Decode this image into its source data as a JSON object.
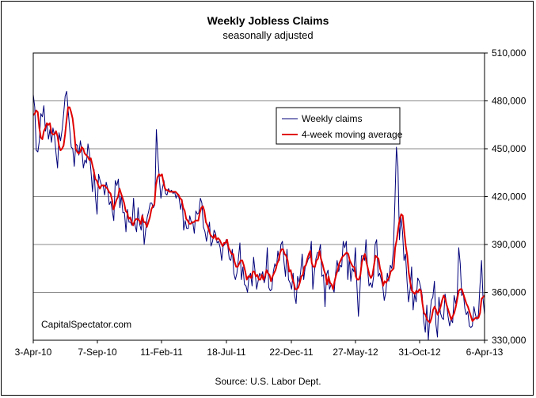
{
  "chart_data": {
    "type": "line",
    "title": "Weekly Jobless Claims",
    "subtitle": "seasonally adjusted",
    "source": "Source: U.S. Labor Dept.",
    "watermark": "CapitalSpectator.com",
    "y_axis_side": "right",
    "ylim": [
      330000,
      510000
    ],
    "y_ticks": [
      "330,000",
      "360,000",
      "390,000",
      "420,000",
      "450,000",
      "480,000",
      "510,000"
    ],
    "y_tick_values": [
      330000,
      360000,
      390000,
      420000,
      450000,
      480000,
      510000
    ],
    "x_tick_labels": [
      "3-Apr-10",
      "7-Sep-10",
      "11-Feb-11",
      "18-Jul-11",
      "22-Dec-11",
      "27-May-12",
      "31-Oct-12",
      "6-Apr-13"
    ],
    "grid": "horizontal",
    "legend_position": "top-right",
    "colors": {
      "weekly": "#00007a",
      "moving_average": "#e00000",
      "grid": "#888888"
    },
    "start_date": "2010-04-03",
    "end_date": "2013-04-06",
    "series": [
      {
        "name": "Weekly claims",
        "values": [
          484000,
          476000,
          449000,
          448000,
          455000,
          472000,
          470000,
          477000,
          461000,
          466000,
          456000,
          462000,
          454000,
          463000,
          458000,
          447000,
          438000,
          460000,
          455000,
          462000,
          472000,
          483000,
          486000,
          474000,
          462000,
          451000,
          450000,
          439000,
          453000,
          452000,
          446000,
          455000,
          449000,
          438000,
          443000,
          441000,
          453000,
          447000,
          436000,
          423000,
          437000,
          419000,
          409000,
          434000,
          430000,
          427000,
          427000,
          421000,
          429000,
          425000,
          415000,
          417000,
          411000,
          405000,
          430000,
          427000,
          431000,
          413000,
          421000,
          410000,
          410000,
          398000,
          412000,
          404000,
          404000,
          402000,
          419000,
          402000,
          398000,
          413000,
          403000,
          399000,
          409000,
          390000,
          399000,
          407000,
          411000,
          416000,
          416000,
          413000,
          415000,
          462000,
          445000,
          431000,
          419000,
          425000,
          430000,
          422000,
          421000,
          425000,
          423000,
          424000,
          422000,
          423000,
          419000,
          422000,
          419000,
          412000,
          418000,
          399000,
          405000,
          400000,
          400000,
          408000,
          404000,
          404000,
          397000,
          411000,
          409000,
          410000,
          419000,
          416000,
          401000,
          398000,
          392000,
          398000,
          404000,
          389000,
          392000,
          399000,
          397000,
          391000,
          392000,
          388000,
          380000,
          389000,
          390000,
          393000,
          389000,
          381000,
          380000,
          387000,
          372000,
          368000,
          372000,
          381000,
          391000,
          368000,
          376000,
          365000,
          364000,
          360000,
          370000,
          372000,
          364000,
          382000,
          373000,
          362000,
          367000,
          372000,
          370000,
          373000,
          366000,
          370000,
          388000,
          363000,
          361000,
          362000,
          373000,
          378000,
          375000,
          386000,
          380000,
          390000,
          392000,
          379000,
          370000,
          387000,
          368000,
          366000,
          362000,
          372000,
          358000,
          353000,
          370000,
          366000,
          373000,
          384000,
          368000,
          376000,
          378000,
          381000,
          382000,
          392000,
          362000,
          373000,
          381000,
          385000,
          385000,
          390000,
          370000,
          371000,
          351000,
          371000,
          374000,
          362000,
          365000,
          363000,
          360000,
          372000,
          380000,
          373000,
          377000,
          376000,
          392000,
          388000,
          392000,
          368000,
          382000,
          367000,
          375000,
          373000,
          388000,
          364000,
          345000,
          361000,
          383000,
          383000,
          380000,
          393000,
          375000,
          364000,
          366000,
          363000,
          370000,
          390000,
          393000,
          370000,
          372000,
          368000,
          364000,
          355000,
          360000,
          372000,
          367000,
          377000,
          375000,
          386000,
          417000,
          451000,
          439000,
          393000,
          407000,
          398000,
          380000,
          384000,
          367000,
          354000,
          362000,
          376000,
          349000,
          359000,
          354000,
          369000,
          367000,
          363000,
          358000,
          342000,
          335000,
          352000,
          330000,
          345000,
          355000,
          357000,
          367000,
          340000,
          332000,
          357000,
          347000,
          344000,
          343000,
          359000,
          353000,
          345000,
          339000,
          343000,
          341000,
          358000,
          353000,
          358000,
          388000,
          378000,
          358000,
          360000,
          350000,
          346000,
          348000,
          339000,
          338000,
          339000,
          351000,
          346000,
          343000,
          346000,
          364000,
          380000,
          356000,
          346000
        ],
        "color": "#00007a"
      },
      {
        "name": "4-week moving average",
        "values": [
          471000,
          472000,
          474000,
          473000,
          463000,
          457000,
          456000,
          461000,
          463000,
          466000,
          465000,
          466000,
          460000,
          459000,
          459000,
          461000,
          458000,
          452000,
          449000,
          450000,
          452000,
          459000,
          468000,
          476000,
          476000,
          473000,
          469000,
          461000,
          450000,
          448000,
          447000,
          448000,
          451000,
          450000,
          447000,
          446000,
          445000,
          443000,
          444000,
          440000,
          436000,
          431000,
          430000,
          427000,
          425000,
          427000,
          427000,
          427000,
          426000,
          425000,
          423000,
          422000,
          418000,
          412000,
          415000,
          418000,
          420000,
          425000,
          422000,
          419000,
          416000,
          411000,
          410000,
          406000,
          407000,
          404000,
          402000,
          405000,
          406000,
          406000,
          405000,
          403000,
          408000,
          404000,
          404000,
          401000,
          404000,
          407000,
          412000,
          414000,
          415000,
          427000,
          432000,
          434000,
          433000,
          434000,
          429000,
          425000,
          424000,
          424000,
          423000,
          423000,
          423000,
          423000,
          423000,
          422000,
          421000,
          419000,
          418000,
          413000,
          411000,
          406000,
          405000,
          403000,
          403000,
          404000,
          404000,
          405000,
          405000,
          405000,
          410000,
          413000,
          414000,
          411000,
          404000,
          402000,
          399000,
          396000,
          395000,
          394000,
          396000,
          393000,
          394000,
          393000,
          391000,
          389000,
          391000,
          391000,
          393000,
          388000,
          386000,
          384000,
          384000,
          379000,
          376000,
          376000,
          378000,
          380000,
          380000,
          377000,
          373000,
          368000,
          370000,
          370000,
          369000,
          373000,
          373000,
          370000,
          371000,
          368000,
          368000,
          371000,
          368000,
          370000,
          374000,
          372000,
          371000,
          367000,
          370000,
          372000,
          374000,
          378000,
          380000,
          385000,
          387000,
          387000,
          384000,
          383000,
          380000,
          373000,
          374000,
          369000,
          366000,
          362000,
          362000,
          363000,
          366000,
          370000,
          371000,
          376000,
          377000,
          381000,
          384000,
          386000,
          378000,
          376000,
          376000,
          380000,
          381000,
          386000,
          381000,
          378000,
          374000,
          371000,
          365000,
          370000,
          366000,
          365000,
          362000,
          367000,
          371000,
          374000,
          378000,
          380000,
          382000,
          383000,
          384000,
          385000,
          384000,
          380000,
          378000,
          376000,
          376000,
          370000,
          368000,
          368000,
          371000,
          379000,
          382000,
          384000,
          379000,
          375000,
          371000,
          369000,
          371000,
          377000,
          383000,
          382000,
          381000,
          375000,
          372000,
          364000,
          367000,
          366000,
          368000,
          369000,
          373000,
          374000,
          375000,
          388000,
          393000,
          400000,
          406000,
          409000,
          408000,
          398000,
          389000,
          383000,
          372000,
          366000,
          361000,
          360000,
          359000,
          361000,
          360000,
          362000,
          361000,
          353000,
          347000,
          346000,
          343000,
          342000,
          341000,
          344000,
          349000,
          351000,
          349000,
          346000,
          348000,
          351000,
          355000,
          358000,
          356000,
          352000,
          349000,
          346000,
          343000,
          345000,
          347000,
          351000,
          356000,
          361000,
          362000,
          362000,
          359000,
          356000,
          353000,
          351000,
          348000,
          345000,
          342000,
          343000,
          344000,
          344000,
          344000,
          347000,
          356000,
          357000,
          358000
        ],
        "color": "#e00000"
      }
    ]
  }
}
